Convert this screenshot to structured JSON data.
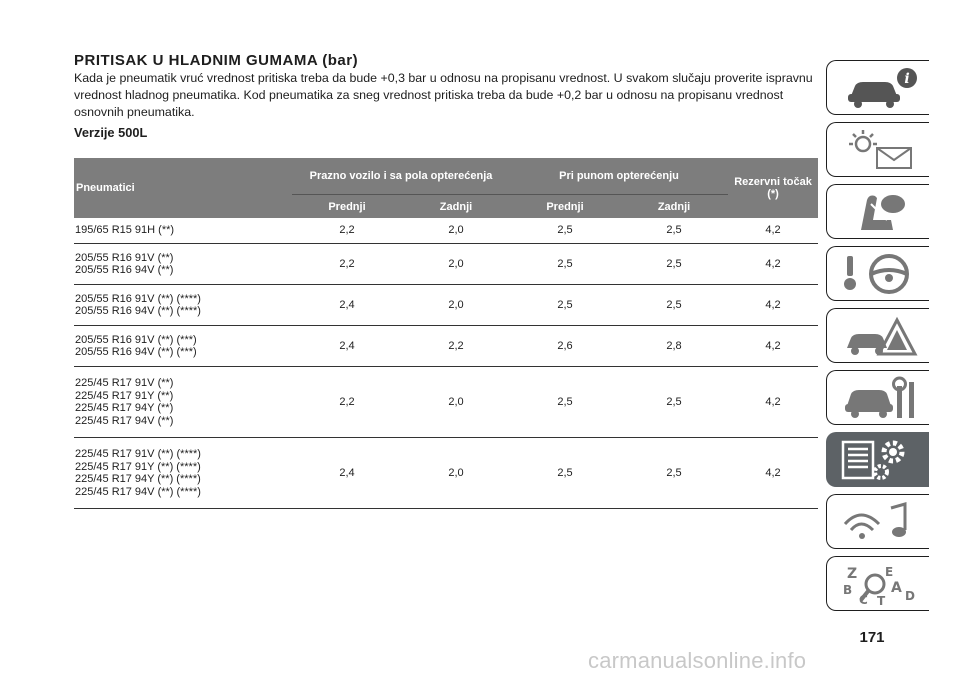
{
  "title": "PRITISAK U HLADNIM GUMAMA (bar)",
  "intro": "Kada je pneumatik vruć vrednost pritiska treba da bude +0,3 bar u odnosu na propisanu vrednost. U svakom slučaju proverite ispravnu vrednost hladnog pneumatika. Kod pneumatika za sneg vrednost pritiska treba da bude +0,2 bar u odnosu na propisanu vrednost osnovnih pneumatika.",
  "version": "Verzije 500L",
  "table": {
    "headers": {
      "tires": "Pneumatici",
      "empty": "Prazno vozilo i sa pola opterećenja",
      "full": "Pri punom opterećenju",
      "spare": "Rezervni točak (*)",
      "front1": "Prednji",
      "rear1": "Zadnji",
      "front2": "Prednji",
      "rear2": "Zadnji"
    },
    "rows": [
      {
        "tires": [
          "195/65 R15 91H (**)"
        ],
        "values": [
          "2,2",
          "2,0",
          "2,5",
          "2,5",
          "4,2"
        ]
      },
      {
        "tires": [
          "205/55 R16 91V (**)",
          "205/55 R16 94V (**)"
        ],
        "values": [
          "2,2",
          "2,0",
          "2,5",
          "2,5",
          "4,2"
        ]
      },
      {
        "tires": [
          "205/55 R16 91V (**) (****)",
          "205/55 R16 94V (**) (****)"
        ],
        "values": [
          "2,4",
          "2,0",
          "2,5",
          "2,5",
          "4,2"
        ]
      },
      {
        "tires": [
          "205/55 R16 91V (**) (***)",
          "205/55 R16 94V (**) (***)"
        ],
        "values": [
          "2,4",
          "2,2",
          "2,6",
          "2,8",
          "4,2"
        ]
      },
      {
        "tires": [
          "225/45 R17 91V (**)",
          "225/45 R17 91Y (**)",
          "225/45 R17 94Y (**)",
          "225/45 R17 94V (**)"
        ],
        "values": [
          "2,2",
          "2,0",
          "2,5",
          "2,5",
          "4,2"
        ]
      },
      {
        "tires": [
          "225/45 R17 91V (**) (****)",
          "225/45 R17 91Y (**) (****)",
          "225/45 R17 94Y (**) (****)",
          "225/45 R17 94V (**) (****)"
        ],
        "values": [
          "2,4",
          "2,0",
          "2,5",
          "2,5",
          "4,2"
        ]
      }
    ]
  },
  "sidebar": {
    "tabs": [
      {
        "icon": "car-info-icon",
        "active": false
      },
      {
        "icon": "warning-lights-icon",
        "active": false
      },
      {
        "icon": "airbag-seat-icon",
        "active": false
      },
      {
        "icon": "steering-key-icon",
        "active": false
      },
      {
        "icon": "emergency-triangle-icon",
        "active": false
      },
      {
        "icon": "car-maintenance-icon",
        "active": false
      },
      {
        "icon": "technical-data-icon",
        "active": true
      },
      {
        "icon": "multimedia-icon",
        "active": false
      },
      {
        "icon": "alphabetical-index-icon",
        "active": false
      }
    ],
    "active_color": "#5d6266"
  },
  "page_number": "171",
  "watermark": "carmanualsonline.info"
}
